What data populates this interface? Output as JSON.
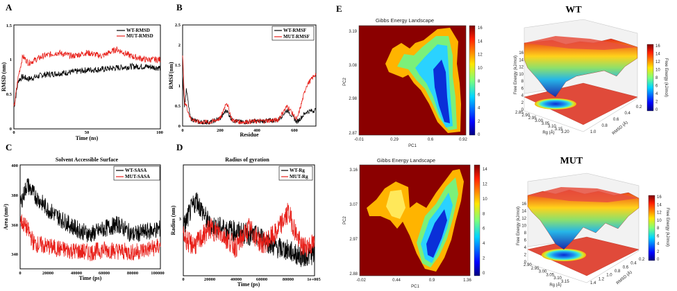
{
  "panels": {
    "A": {
      "letter": "A",
      "title": "",
      "xlabel": "Time (ns)",
      "ylabel": "RMSD (nm)",
      "xticks": [
        "0",
        "50",
        "100"
      ],
      "yticks": [
        "0",
        "0.5",
        "1",
        "1.5"
      ],
      "legend": [
        "WT-RMSD",
        "MUT-RMSD"
      ]
    },
    "B": {
      "letter": "B",
      "title": "",
      "xlabel": "Residue",
      "ylabel": "RMSF(nm)",
      "xticks": [
        "0",
        "200",
        "400",
        "600"
      ],
      "yticks": [
        "0",
        "0.5",
        "1",
        "1.5",
        "2",
        "2.5"
      ],
      "legend": [
        "WT-RMSF",
        "MUT-RMSF"
      ]
    },
    "C": {
      "letter": "C",
      "title": "Solvent Accessible Surface",
      "xlabel": "Time (ps)",
      "ylabel": "Area (nm²)",
      "xticks": [
        "0",
        "20000",
        "40000",
        "60000",
        "80000",
        "100000"
      ],
      "yticks": [
        "340",
        "360",
        "380",
        "400"
      ],
      "legend": [
        "WT-SASA",
        "MUT-SASA"
      ]
    },
    "D": {
      "letter": "D",
      "title": "Radius of gyration",
      "xlabel": "Time (ps)",
      "ylabel": "Radius (nm)",
      "xticks": [
        "0",
        "20000",
        "40000",
        "60000",
        "80000",
        "1e+005"
      ],
      "yticks": [
        "3"
      ],
      "legend": [
        "WT-Rg",
        "MUT-Rg"
      ]
    },
    "E": {
      "letter": "E"
    }
  },
  "fel": [
    {
      "title": "Gibbs Energy Landscape",
      "xlabel": "PC1",
      "ylabel": "PC2",
      "xticks": [
        "-0.01",
        "0.29",
        "0.6",
        "0.92"
      ],
      "yticks": [
        "3.19",
        "3.08",
        "2.98",
        "2.87"
      ],
      "cbar": [
        "0",
        "2",
        "4",
        "6",
        "8",
        "10",
        "12",
        "14",
        "16"
      ]
    },
    {
      "title": "Gibbs Energy Landscape",
      "xlabel": "PC1",
      "ylabel": "PC2",
      "xticks": [
        "-0.02",
        "0.44",
        "0.9",
        "1.36"
      ],
      "yticks": [
        "3.16",
        "3.07",
        "2.97",
        "2.88"
      ],
      "cbar": [
        "0",
        "2",
        "4",
        "6",
        "8",
        "10",
        "12",
        "14"
      ]
    }
  ],
  "surface": [
    {
      "label": "WT",
      "zlabel": "Free Energy (kJ/mol)",
      "cbarlabel": "Free Energy (kJ/mol)",
      "zticks": [
        "0",
        "2",
        "4",
        "6",
        "8",
        "10",
        "12",
        "14",
        "16"
      ],
      "rgticks": [
        "2.85",
        "2.90",
        "2.95",
        "3.00",
        "3.05",
        "3.10",
        "3.15",
        "3.20"
      ],
      "rmsdticks": [
        "1.0",
        "0.8",
        "0.6",
        "0.4",
        "0.2"
      ],
      "rglabel": "Rg (Å)",
      "rmsdlabel": "RMSD (Å)",
      "cbar": [
        "0",
        "2",
        "4",
        "6",
        "8",
        "10",
        "12",
        "14",
        "16"
      ]
    },
    {
      "label": "MUT",
      "zlabel": "Free Energy (kJ/mol)",
      "cbarlabel": "Free Energy (kJ/mol)",
      "zticks": [
        "0",
        "2",
        "4",
        "6",
        "8",
        "10",
        "12",
        "14",
        "16"
      ],
      "rgticks": [
        "2.90",
        "2.95",
        "3.00",
        "3.05",
        "3.10",
        "3.15"
      ],
      "rmsdticks": [
        "1.4",
        "1.2",
        "1.0",
        "0.8",
        "0.6",
        "0.4",
        "0.2"
      ],
      "rglabel": "Rg (Å)",
      "rmsdlabel": "RMSD (Å)",
      "cbar": [
        "0",
        "2",
        "4",
        "6",
        "8",
        "10",
        "12",
        "14",
        "16"
      ]
    }
  ],
  "chart_data": [
    {
      "type": "line",
      "title": "",
      "xlabel": "Time (ns)",
      "ylabel": "RMSD (nm)",
      "xlim": [
        0,
        100
      ],
      "ylim": [
        0,
        1.5
      ],
      "series": [
        {
          "name": "WT-RMSD",
          "color": "#000000",
          "x": [
            0,
            3,
            6,
            10,
            20,
            30,
            40,
            50,
            60,
            70,
            80,
            90,
            100
          ],
          "y": [
            0.3,
            0.7,
            0.75,
            0.72,
            0.78,
            0.8,
            0.82,
            0.85,
            0.86,
            0.88,
            0.9,
            0.9,
            0.88
          ]
        },
        {
          "name": "MUT-RMSD",
          "color": "#e8201a",
          "x": [
            0,
            3,
            6,
            10,
            20,
            30,
            40,
            50,
            60,
            70,
            80,
            90,
            100
          ],
          "y": [
            0.3,
            0.75,
            1.05,
            0.95,
            1.05,
            1.1,
            1.05,
            1.1,
            1.05,
            1.15,
            1.05,
            1.0,
            1.0
          ]
        }
      ]
    },
    {
      "type": "line",
      "title": "",
      "xlabel": "Residue",
      "ylabel": "RMSF(nm)",
      "xlim": [
        0,
        700
      ],
      "ylim": [
        0,
        2.5
      ],
      "series": [
        {
          "name": "WT-RMSF",
          "color": "#000000",
          "x": [
            0,
            10,
            20,
            40,
            80,
            150,
            200,
            230,
            260,
            300,
            400,
            500,
            550,
            600,
            650,
            700
          ],
          "y": [
            1.3,
            0.5,
            0.9,
            0.2,
            0.1,
            0.1,
            0.2,
            0.4,
            0.15,
            0.1,
            0.12,
            0.15,
            0.4,
            0.1,
            0.35,
            0.4
          ]
        },
        {
          "name": "MUT-RMSF",
          "color": "#e8201a",
          "x": [
            0,
            10,
            20,
            40,
            80,
            150,
            200,
            230,
            260,
            300,
            400,
            500,
            550,
            600,
            650,
            700
          ],
          "y": [
            1.8,
            0.6,
            0.5,
            0.2,
            0.1,
            0.1,
            0.2,
            0.6,
            0.15,
            0.1,
            0.12,
            0.15,
            0.5,
            0.15,
            1.0,
            1.3
          ]
        }
      ]
    },
    {
      "type": "line",
      "title": "Solvent Accessible Surface",
      "xlabel": "Time (ps)",
      "ylabel": "Area (nm²)",
      "xlim": [
        0,
        100000
      ],
      "ylim": [
        335,
        405
      ],
      "series": [
        {
          "name": "WT-SASA",
          "color": "#000000",
          "x": [
            0,
            5000,
            10000,
            20000,
            30000,
            40000,
            50000,
            60000,
            70000,
            80000,
            90000,
            100000
          ],
          "y": [
            378,
            392,
            385,
            375,
            368,
            362,
            358,
            362,
            365,
            358,
            360,
            362
          ]
        },
        {
          "name": "MUT-SASA",
          "color": "#e8201a",
          "x": [
            0,
            5000,
            10000,
            20000,
            30000,
            40000,
            50000,
            60000,
            70000,
            80000,
            90000,
            100000
          ],
          "y": [
            368,
            362,
            352,
            350,
            348,
            347,
            346,
            348,
            347,
            346,
            348,
            350
          ]
        }
      ]
    },
    {
      "type": "line",
      "title": "Radius of gyration",
      "xlabel": "Time (ps)",
      "ylabel": "Radius (nm)",
      "xlim": [
        0,
        100000
      ],
      "ylim": [
        2.9,
        3.25
      ],
      "series": [
        {
          "name": "WT-Rg",
          "color": "#000000",
          "x": [
            0,
            5000,
            10000,
            20000,
            30000,
            40000,
            50000,
            60000,
            70000,
            80000,
            90000,
            100000
          ],
          "y": [
            3.05,
            3.1,
            3.14,
            3.06,
            3.05,
            3.04,
            3.03,
            3.02,
            2.99,
            2.98,
            2.96,
            2.97
          ]
        },
        {
          "name": "MUT-Rg",
          "color": "#e8201a",
          "x": [
            0,
            5000,
            10000,
            20000,
            30000,
            40000,
            50000,
            60000,
            70000,
            80000,
            90000,
            100000
          ],
          "y": [
            3.03,
            3.0,
            3.0,
            3.05,
            3.03,
            2.99,
            3.05,
            3.0,
            3.03,
            3.1,
            2.99,
            3.0
          ]
        }
      ]
    }
  ]
}
